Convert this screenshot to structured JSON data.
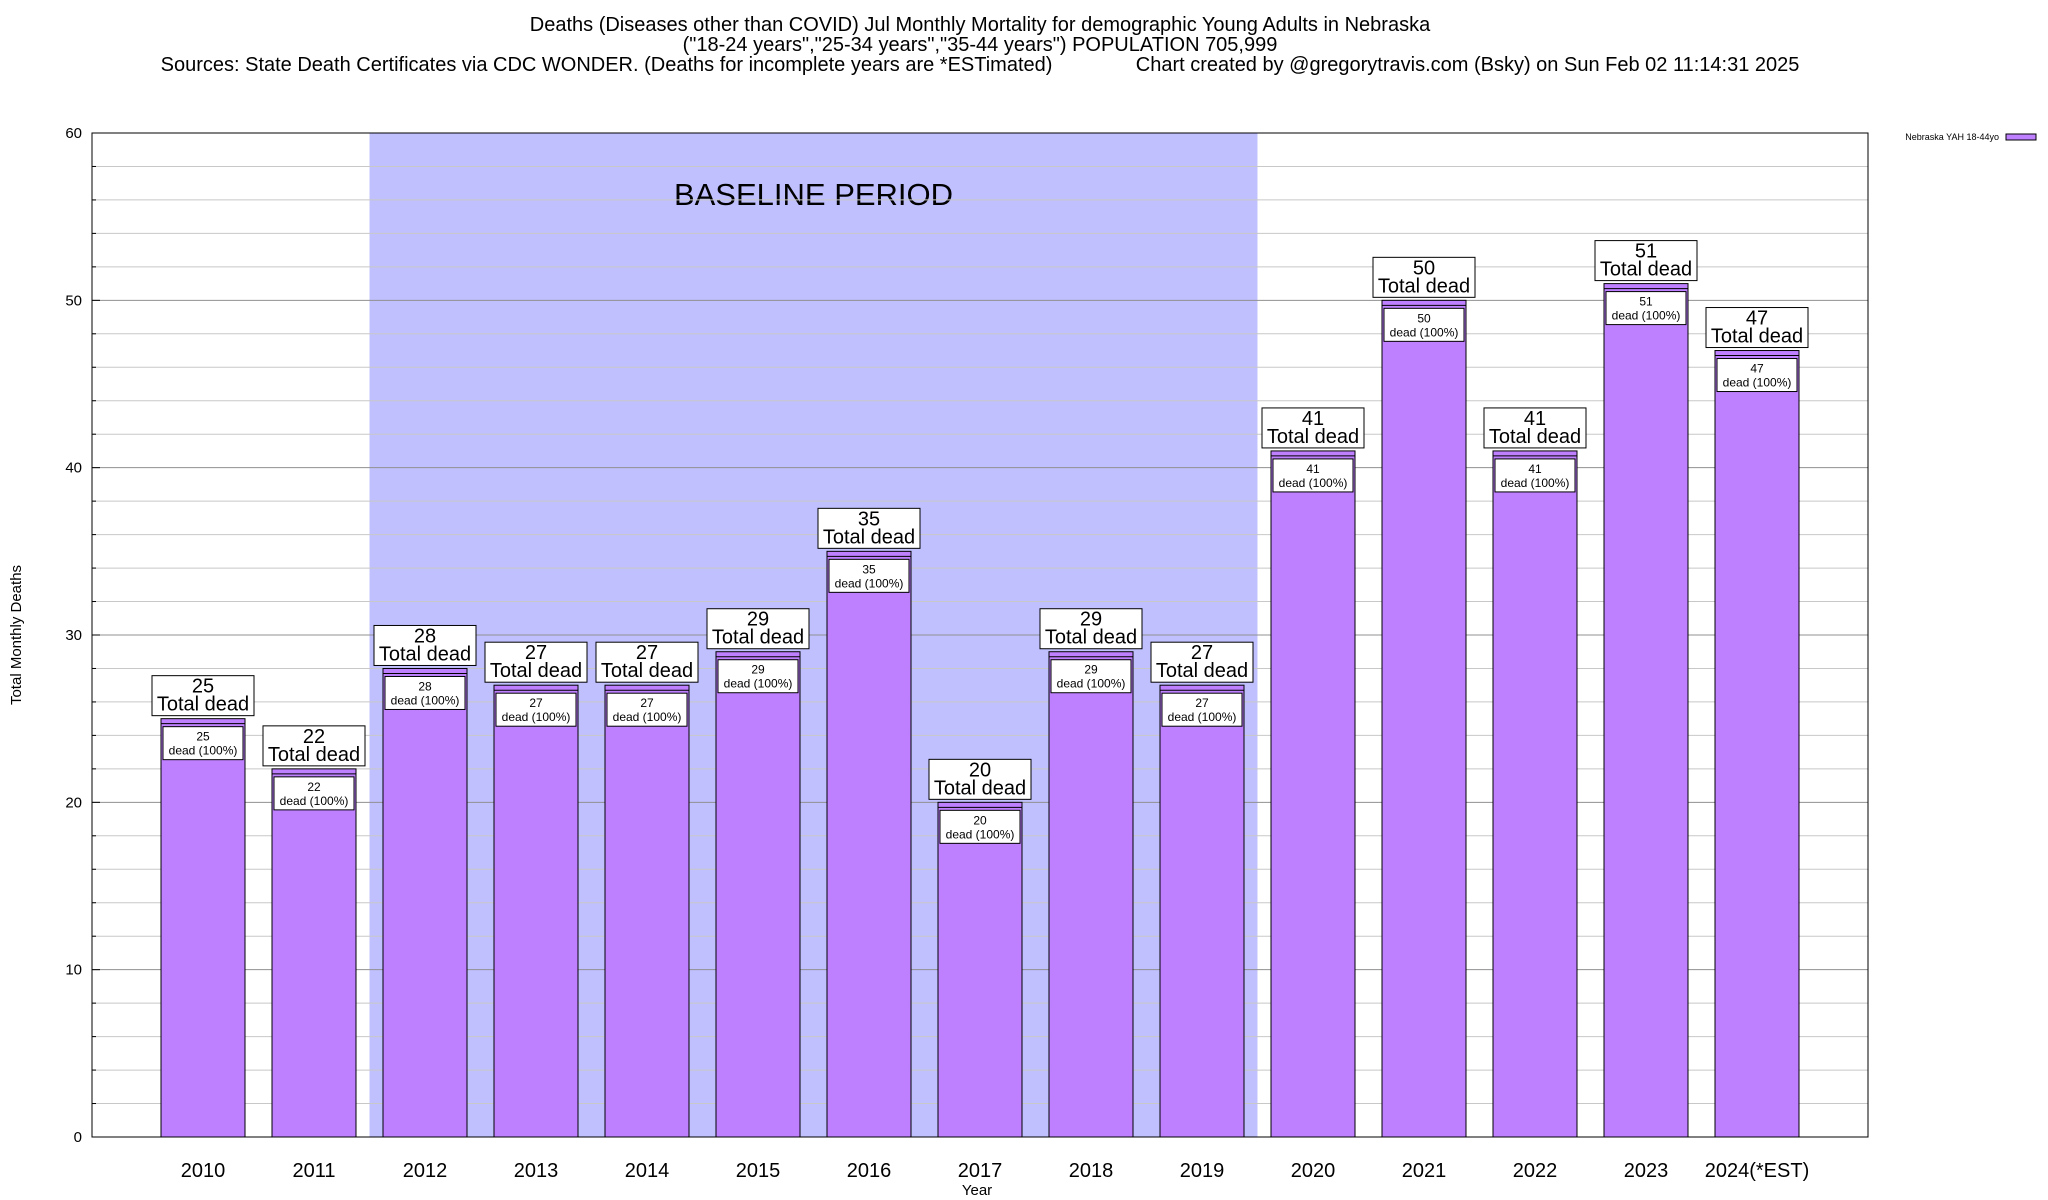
{
  "header": {
    "line1": "Deaths (Diseases other than COVID) Jul Monthly Mortality for demographic Young Adults in Nebraska",
    "line2": "(\"18-24 years\",\"25-34 years\",\"35-44 years\") POPULATION 705,999",
    "line3": "Sources: State Death Certificates via CDC WONDER. (Deaths for incomplete years are *ESTimated)               Chart created by @gregorytravis.com (Bsky) on Sun Feb 02 11:14:31 2025"
  },
  "chart_data": {
    "type": "bar",
    "categories": [
      "2010",
      "2011",
      "2012",
      "2013",
      "2014",
      "2015",
      "2016",
      "2017",
      "2018",
      "2019",
      "2020",
      "2021",
      "2022",
      "2023",
      "2024(*EST)"
    ],
    "series": [
      {
        "name": "Nebraska YAH 18-44yo",
        "values": [
          25,
          22,
          28,
          27,
          27,
          29,
          35,
          20,
          29,
          27,
          41,
          50,
          41,
          51,
          47
        ]
      }
    ],
    "xlabel": "Year",
    "ylabel": "Total Monthly Deaths",
    "ylim": [
      0,
      60
    ],
    "yticks": [
      0,
      10,
      20,
      30,
      40,
      50,
      60
    ],
    "grid": true,
    "legend_position": "top-right",
    "baseline": {
      "label": "BASELINE PERIOD",
      "from": "2012",
      "to": "2019"
    },
    "total_label_suffix": "Total dead",
    "inner_label_suffix": "dead (100%)",
    "colors": {
      "bar": "#bf80ff",
      "baseline": "#c0c0ff",
      "grid": "#a0a0a0"
    }
  }
}
